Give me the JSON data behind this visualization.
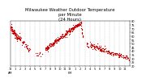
{
  "title": "Milwaukee Weather Outdoor Temperature\nper Minute\n(24 Hours)",
  "title_fontsize": 3.8,
  "bg_color": "#ffffff",
  "plot_bg_color": "#ffffff",
  "line_color": "#cc0000",
  "marker_size": 0.8,
  "tick_label_fontsize": 2.5,
  "n_points": 1440,
  "y_min": 20,
  "y_max": 80,
  "vline_color": "#999999",
  "vline_positions": [
    60,
    120,
    180,
    240,
    300,
    360,
    420,
    480,
    540,
    600,
    660,
    720,
    780,
    840,
    900,
    960,
    1020,
    1080,
    1140,
    1200,
    1260,
    1320,
    1380
  ],
  "x_tick_positions": [
    0,
    60,
    120,
    180,
    240,
    300,
    360,
    420,
    480,
    540,
    600,
    660,
    720,
    780,
    840,
    900,
    960,
    1020,
    1080,
    1140,
    1200,
    1260,
    1320,
    1380
  ],
  "x_tick_labels": [
    "12\nAM",
    "1",
    "2",
    "3",
    "4",
    "5",
    "6",
    "7",
    "8",
    "9",
    "10",
    "11",
    "12\nPM",
    "1",
    "2",
    "3",
    "4",
    "5",
    "6",
    "7",
    "8",
    "9",
    "10",
    "11"
  ],
  "y_tick_positions": [
    20,
    25,
    30,
    35,
    40,
    45,
    50,
    55,
    60,
    65,
    70,
    75,
    80
  ],
  "y_tick_labels": [
    "20",
    "25",
    "30",
    "35",
    "40",
    "45",
    "50",
    "55",
    "60",
    "65",
    "70",
    "75",
    "80"
  ],
  "seed": 12
}
